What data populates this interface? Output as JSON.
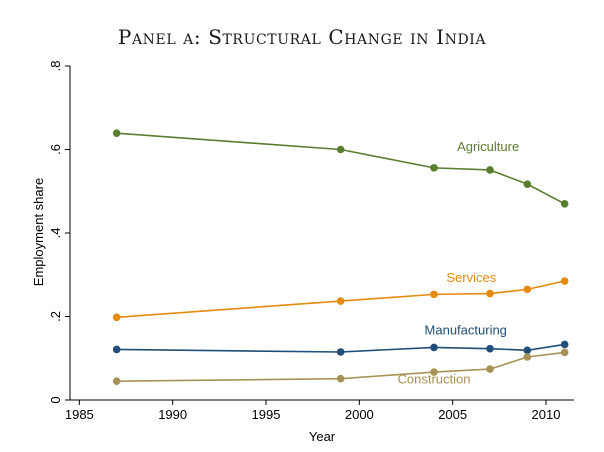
{
  "chart_data": {
    "type": "line",
    "title": "Panel a: Structural Change in India",
    "xlabel": "Year",
    "ylabel": "Employment share",
    "xlim": [
      1984.5,
      2011.5
    ],
    "ylim": [
      0,
      0.8
    ],
    "xticks": [
      1985,
      1990,
      1995,
      2000,
      2005,
      2010
    ],
    "xtick_labels": [
      "1985",
      "1990",
      "1995",
      "2000",
      "2005",
      "2010"
    ],
    "yticks": [
      0,
      0.2,
      0.4,
      0.6,
      0.8
    ],
    "ytick_labels": [
      "0",
      ".2",
      ".4",
      ".6",
      ".8"
    ],
    "grid": false,
    "x": [
      1987,
      1999,
      2004,
      2007,
      2009,
      2011
    ],
    "series": [
      {
        "name": "Agriculture",
        "color": "#5a7d2e",
        "values": [
          0.639,
          0.6,
          0.556,
          0.551,
          0.517,
          0.47
        ]
      },
      {
        "name": "Services",
        "color": "#e68a0e",
        "values": [
          0.198,
          0.237,
          0.253,
          0.255,
          0.265,
          0.285
        ]
      },
      {
        "name": "Manufacturing",
        "color": "#1f4e78",
        "values": [
          0.121,
          0.115,
          0.126,
          0.123,
          0.119,
          0.133
        ]
      },
      {
        "name": "Construction",
        "color": "#a69254",
        "values": [
          0.045,
          0.051,
          0.067,
          0.074,
          0.103,
          0.114
        ]
      }
    ],
    "annotations": [
      {
        "text": "Agriculture",
        "series": "Agriculture",
        "x": 2006.9,
        "y": 0.596
      },
      {
        "text": "Services",
        "series": "Services",
        "x": 2006.0,
        "y": 0.283
      },
      {
        "text": "Manufacturing",
        "series": "Manufacturing",
        "x": 2005.7,
        "y": 0.157
      },
      {
        "text": "Construction",
        "series": "Construction",
        "x": 2004.0,
        "y": 0.039
      }
    ]
  }
}
